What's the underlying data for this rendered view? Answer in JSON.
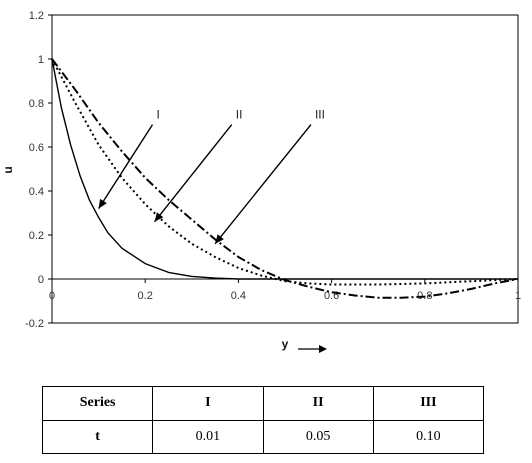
{
  "chart_data": {
    "type": "line",
    "xlabel": "y",
    "ylabel": "u",
    "xlim": [
      0,
      1
    ],
    "ylim": [
      -0.2,
      1.2
    ],
    "x_ticks": [
      "0",
      "0.2",
      "0.4",
      "0.6",
      "0.8",
      "1"
    ],
    "y_ticks": [
      "-0.2",
      "0",
      "0.2",
      "0.4",
      "0.6",
      "0.8",
      "1",
      "1.2"
    ],
    "grid": false,
    "series": [
      {
        "name": "I",
        "line_style": "solid",
        "x": [
          0,
          0.02,
          0.04,
          0.06,
          0.08,
          0.1,
          0.12,
          0.15,
          0.2,
          0.25,
          0.3,
          0.35,
          0.4,
          0.5,
          0.6,
          0.8,
          1.0
        ],
        "y": [
          1.0,
          0.78,
          0.61,
          0.47,
          0.36,
          0.28,
          0.21,
          0.14,
          0.07,
          0.03,
          0.012,
          0.004,
          0.0,
          0.0,
          0.0,
          0.0,
          0.0
        ]
      },
      {
        "name": "II",
        "line_style": "dotted",
        "x": [
          0,
          0.05,
          0.1,
          0.15,
          0.2,
          0.25,
          0.3,
          0.35,
          0.4,
          0.45,
          0.5,
          0.55,
          0.6,
          0.7,
          0.8,
          0.9,
          0.95,
          1.0
        ],
        "y": [
          1.0,
          0.8,
          0.61,
          0.46,
          0.34,
          0.24,
          0.16,
          0.1,
          0.05,
          0.015,
          -0.01,
          -0.02,
          -0.025,
          -0.025,
          -0.02,
          -0.01,
          -0.005,
          0.0
        ]
      },
      {
        "name": "III",
        "line_style": "dash-dot",
        "x": [
          0,
          0.05,
          0.1,
          0.15,
          0.2,
          0.25,
          0.3,
          0.35,
          0.4,
          0.45,
          0.5,
          0.55,
          0.6,
          0.65,
          0.7,
          0.75,
          0.8,
          0.85,
          0.9,
          0.95,
          1.0
        ],
        "y": [
          1.0,
          0.86,
          0.71,
          0.58,
          0.46,
          0.36,
          0.27,
          0.18,
          0.1,
          0.04,
          -0.005,
          -0.035,
          -0.06,
          -0.075,
          -0.085,
          -0.085,
          -0.08,
          -0.065,
          -0.045,
          -0.02,
          0.0
        ]
      }
    ],
    "annotations": [
      {
        "text": "I",
        "label_at": [
          0.22,
          0.72
        ],
        "arrow_to": [
          0.1,
          0.32
        ]
      },
      {
        "text": "II",
        "label_at": [
          0.39,
          0.72
        ],
        "arrow_to": [
          0.22,
          0.26
        ]
      },
      {
        "text": "III",
        "label_at": [
          0.56,
          0.72
        ],
        "arrow_to": [
          0.35,
          0.16
        ]
      }
    ]
  },
  "table": {
    "header": [
      "Series",
      "I",
      "II",
      "III"
    ],
    "rows": [
      [
        "t",
        "0.01",
        "0.05",
        "0.10"
      ]
    ]
  }
}
